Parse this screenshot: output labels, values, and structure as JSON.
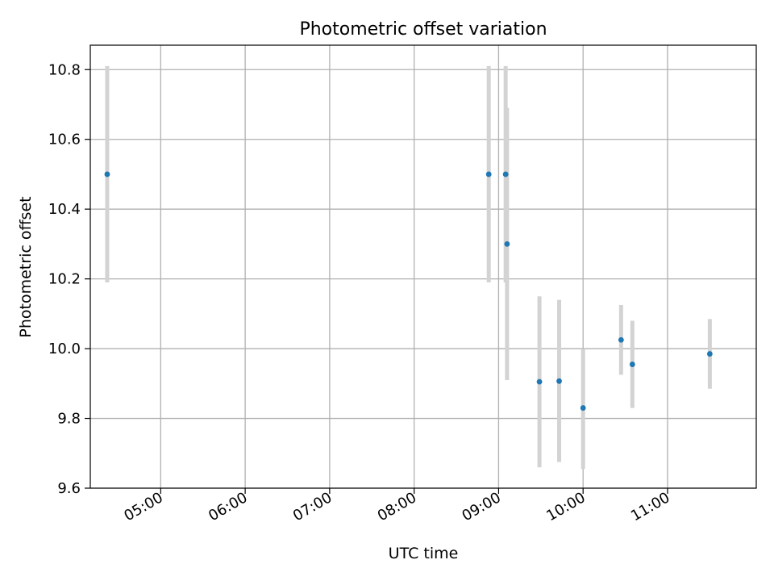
{
  "chart_data": {
    "type": "scatter",
    "title": "Photometric offset variation",
    "xlabel": "UTC time",
    "ylabel": "Photometric offset",
    "x_tick_labels": [
      "05:00",
      "06:00",
      "07:00",
      "08:00",
      "09:00",
      "10:00",
      "11:00"
    ],
    "x_tick_hours": [
      5,
      6,
      7,
      8,
      9,
      10,
      11
    ],
    "y_tick_labels": [
      "9.6",
      "9.8",
      "10.0",
      "10.2",
      "10.4",
      "10.6",
      "10.8"
    ],
    "y_ticks": [
      9.6,
      9.8,
      10.0,
      10.2,
      10.4,
      10.6,
      10.8
    ],
    "xlim": [
      "04:10",
      "12:03"
    ],
    "ylim": [
      9.6,
      10.87
    ],
    "grid": true,
    "points": [
      {
        "time": "04:22",
        "y": 10.5,
        "err_low": 10.19,
        "err_high": 10.81
      },
      {
        "time": "08:53",
        "y": 10.5,
        "err_low": 10.19,
        "err_high": 10.81
      },
      {
        "time": "09:05",
        "y": 10.5,
        "err_low": 10.19,
        "err_high": 10.81
      },
      {
        "time": "09:06",
        "y": 10.3,
        "err_low": 9.91,
        "err_high": 10.69
      },
      {
        "time": "09:29",
        "y": 9.905,
        "err_low": 9.66,
        "err_high": 10.15
      },
      {
        "time": "09:43",
        "y": 9.907,
        "err_low": 9.675,
        "err_high": 10.14
      },
      {
        "time": "10:00",
        "y": 9.83,
        "err_low": 9.655,
        "err_high": 10.0
      },
      {
        "time": "10:27",
        "y": 10.025,
        "err_low": 9.925,
        "err_high": 10.125
      },
      {
        "time": "10:35",
        "y": 9.955,
        "err_low": 9.83,
        "err_high": 10.08
      },
      {
        "time": "11:30",
        "y": 9.985,
        "err_low": 9.885,
        "err_high": 10.085
      }
    ],
    "colors": {
      "point": "#1f77b4",
      "errorbar": "#d3d3d3",
      "grid": "#b0b0b0",
      "axes": "#000000"
    }
  }
}
